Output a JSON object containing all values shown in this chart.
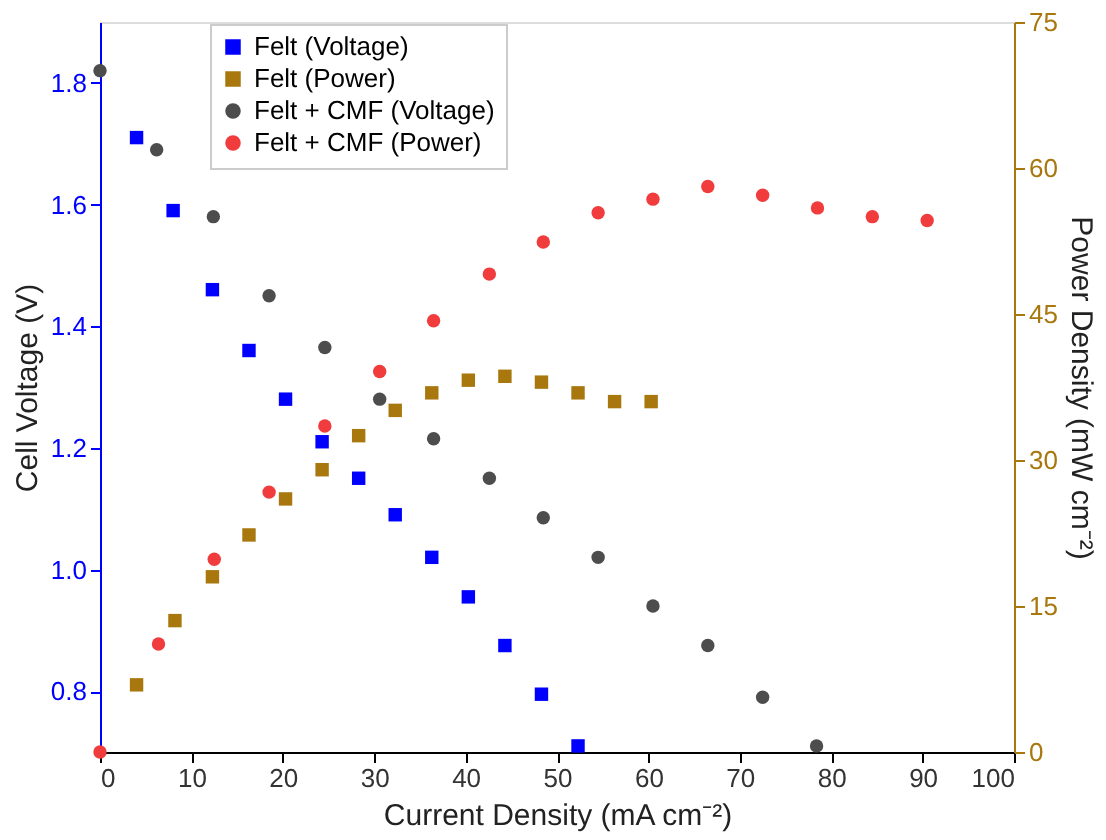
{
  "chart_data": {
    "type": "scatter",
    "xlabel": "Current Density (mA cm⁻²)",
    "ylabel": "Cell Voltage (V)",
    "y2label": "Power Density (mW cm⁻²)",
    "xlim": [
      0,
      100
    ],
    "xticks": [
      0,
      10,
      20,
      30,
      40,
      50,
      60,
      70,
      80,
      90,
      100
    ],
    "ylim": [
      0.7,
      1.9
    ],
    "yticks": [
      0.8,
      {
        "value": 1,
        "label": "1.0"
      },
      1.2,
      1.4,
      1.6,
      1.8
    ],
    "y2lim": [
      0,
      75
    ],
    "y2ticks": [
      0,
      15,
      30,
      45,
      60,
      75
    ],
    "grid": false,
    "legend": "top",
    "series": [
      {
        "name": "Felt (Voltage)",
        "color": "#0000ff",
        "marker": "square",
        "x": [
          4,
          8,
          12.3,
          16.3,
          20.3,
          24.3,
          28.3,
          32.3,
          36.3,
          40.3,
          44.3,
          48.3,
          52.3
        ],
        "values": [
          1.71,
          1.59,
          1.46,
          1.36,
          1.28,
          1.21,
          1.15,
          1.09,
          1.02,
          0.955,
          0.875,
          0.795,
          0.71
        ]
      },
      {
        "name": "Felt (Power)",
        "color": "#a8780f",
        "marker": "square",
        "axis": "y2",
        "x": [
          4,
          8.2,
          12.3,
          16.3,
          20.3,
          24.3,
          28.3,
          32.3,
          36.3,
          40.3,
          44.3,
          48.3,
          52.3,
          56.3,
          60.3
        ],
        "values": [
          6.9,
          13.5,
          18,
          22.3,
          26,
          29,
          32.5,
          35.1,
          36.9,
          38.2,
          38.6,
          38,
          36.9,
          36,
          36
        ]
      },
      {
        "name": "Felt + CMF (Voltage)",
        "color": "#4d4d4d",
        "marker": "circle",
        "x": [
          0,
          6.2,
          12.4,
          18.5,
          24.6,
          30.6,
          36.5,
          42.6,
          48.5,
          54.5,
          60.5,
          66.5,
          72.5,
          78.4
        ],
        "values": [
          1.82,
          1.69,
          1.58,
          1.45,
          1.365,
          1.28,
          1.215,
          1.15,
          1.085,
          1.02,
          0.94,
          0.875,
          0.79,
          0.71
        ]
      },
      {
        "name": "Felt + CMF (Power)",
        "color": "#f03c3c",
        "marker": "circle",
        "axis": "y2",
        "x": [
          0,
          6.4,
          12.5,
          18.5,
          24.6,
          30.6,
          36.5,
          42.6,
          48.5,
          54.5,
          60.5,
          66.5,
          72.5,
          78.5,
          84.5,
          90.5
        ],
        "values": [
          0,
          11.1,
          19.8,
          26.7,
          33.5,
          39.1,
          44.3,
          49.1,
          52.4,
          55.4,
          56.8,
          58.1,
          57.2,
          55.9,
          55,
          54.6
        ]
      }
    ]
  }
}
